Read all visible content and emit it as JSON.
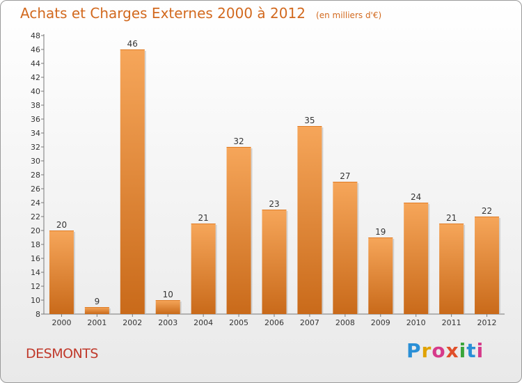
{
  "header": {
    "title": "Achats et Charges Externes 2000 à 2012",
    "subtitle": "(en milliers d'€)"
  },
  "footer": {
    "city": "DESMONTS",
    "logo": "Proxiti"
  },
  "colors": {
    "title": "#d2691e",
    "bar_light": "#f6a65a",
    "bar_dark": "#c96a1a",
    "city": "#c0392b"
  },
  "chart_data": {
    "type": "bar",
    "categories": [
      "2000",
      "2001",
      "2002",
      "2003",
      "2004",
      "2005",
      "2006",
      "2007",
      "2008",
      "2009",
      "2010",
      "2011",
      "2012"
    ],
    "values": [
      20,
      9,
      46,
      10,
      21,
      32,
      23,
      35,
      27,
      19,
      24,
      21,
      22
    ],
    "title": "Achats et Charges Externes 2000 à 2012",
    "subtitle": "(en milliers d'€)",
    "ylim": [
      8,
      48
    ],
    "yticks": [
      8,
      10,
      12,
      14,
      16,
      18,
      20,
      22,
      24,
      26,
      28,
      30,
      32,
      34,
      36,
      38,
      40,
      42,
      44,
      46,
      48
    ],
    "grid": false,
    "data_labels": true
  }
}
